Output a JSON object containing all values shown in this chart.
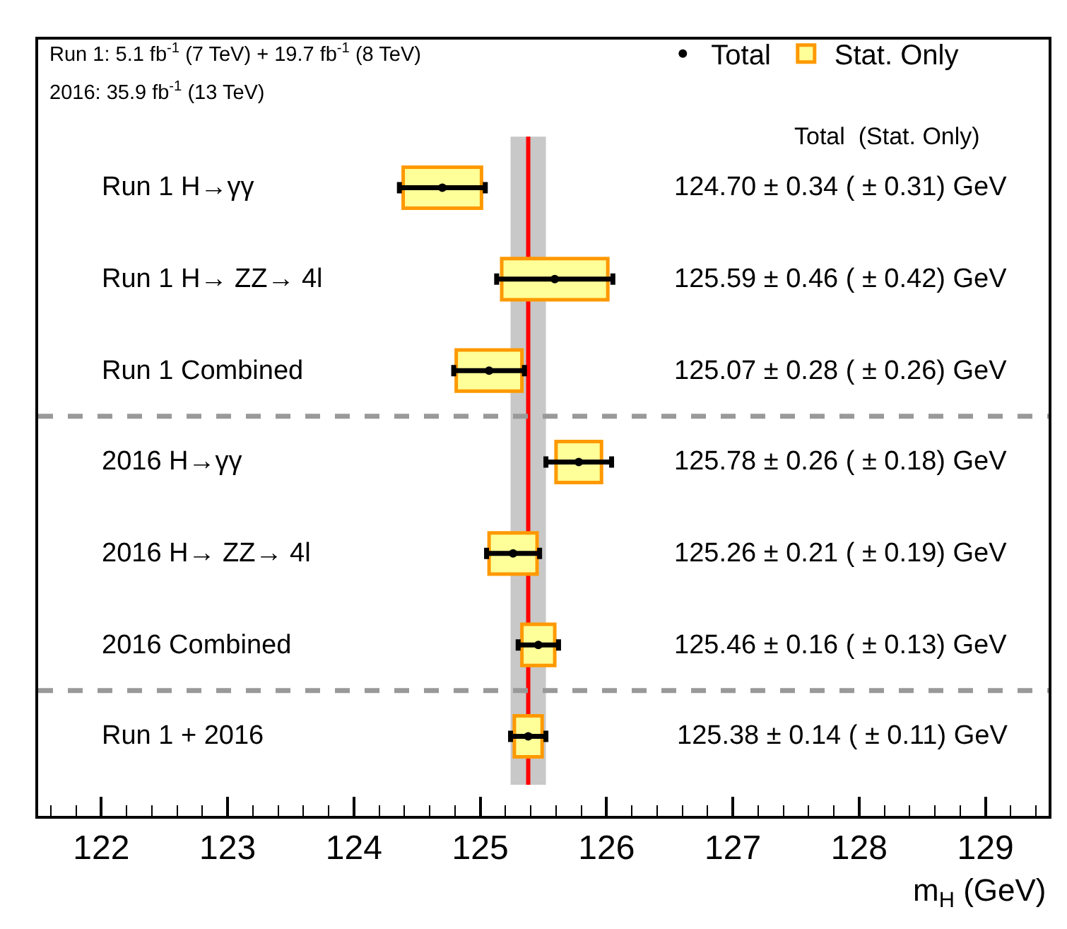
{
  "chart_data": {
    "type": "scatter",
    "orientation": "horizontal",
    "categories": [
      "Run 1 H→γγ",
      "Run 1 H→ ZZ→ 4l",
      "Run 1 Combined",
      "2016 H→γγ",
      "2016 H→ ZZ→ 4l",
      "2016 Combined",
      "Run 1 + 2016"
    ],
    "series": [
      {
        "name": "Stat. Only",
        "type": "bar",
        "color": "#ffff99",
        "base": [
          124.39,
          125.17,
          124.81,
          125.6,
          125.07,
          125.33,
          125.27
        ],
        "values": [
          0.62,
          0.84,
          0.52,
          0.36,
          0.38,
          0.26,
          0.22
        ]
      },
      {
        "name": "Total",
        "color": "#000000",
        "marker": "circle",
        "values": [
          124.7,
          125.59,
          125.07,
          125.78,
          125.26,
          125.46,
          125.38
        ],
        "errors": [
          0.34,
          0.46,
          0.28,
          0.26,
          0.21,
          0.16,
          0.14
        ]
      }
    ],
    "xlabel": "m$_{H}$ (GeV)",
    "xlim": [
      121.5,
      129.5
    ],
    "xticks": [
      122,
      123,
      124,
      125,
      126,
      127,
      128,
      129
    ],
    "ref_lines": [
      {
        "axis": "x",
        "value": 125.38,
        "color": "#ff0000",
        "line_style": "solid"
      }
    ],
    "bands": [
      {
        "axis": "x",
        "from": 125.24,
        "to": 125.52,
        "color": "#c8c8c8"
      }
    ],
    "tick_labels": "x",
    "annotations": [
      "Run 1: 5.1 fb$^{-1}$ (7 TeV) + 19.7 fb$^{-1}$ (8 TeV)",
      "2016: 35.9 fb$^{-1}$ (13 TeV)",
      "Total  (Stat. Only)",
      "124.70 ± 0.34 ( ± 0.31) GeV",
      "125.59 ± 0.46 ( ± 0.42) GeV",
      "125.07 ± 0.28 ( ± 0.26) GeV",
      "125.78 ± 0.26 ( ± 0.18) GeV",
      "125.26 ± 0.21 ( ± 0.19) GeV",
      "125.46 ± 0.16 ( ± 0.13) GeV",
      "125.38 ± 0.14 ( ± 0.11) GeV"
    ],
    "legend": "top right",
    "grid": false
  }
}
